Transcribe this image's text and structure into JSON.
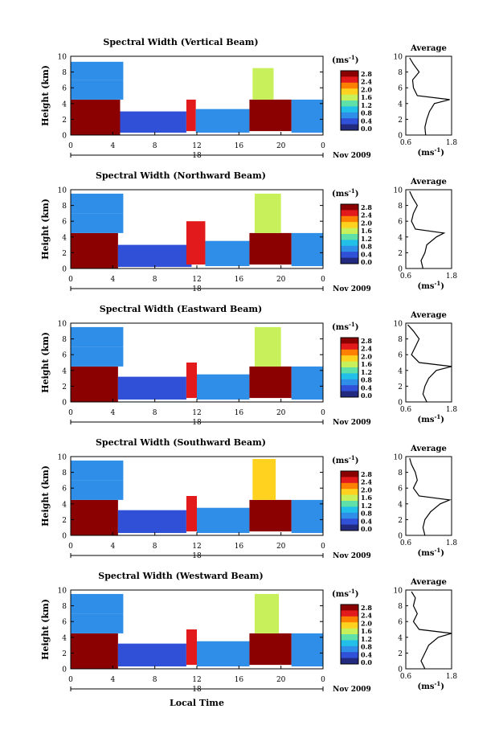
{
  "figure": {
    "date_label": "Nov 2009",
    "x_axis_title": "Local Time"
  },
  "colorbar": {
    "unit_label": "(ms",
    "unit_exp": "-1",
    "unit_close": ")",
    "ticks": [
      "2.8",
      "2.4",
      "2.0",
      "1.6",
      "1.2",
      "0.8",
      "0.4",
      "0.0"
    ],
    "colors": [
      "#8b0000",
      "#e31a1c",
      "#ff7f00",
      "#ffd21f",
      "#c7f05a",
      "#5fe0a8",
      "#22c0e8",
      "#2f8fe8",
      "#3050d8",
      "#222a80"
    ],
    "min": 0.0,
    "max": 3.0
  },
  "average_panel": {
    "title": "Average",
    "x_unit": "(ms",
    "x_unit_exp": "-1",
    "x_unit_close": ")"
  },
  "chart_data": [
    {
      "type": "heatmap",
      "title": "Spectral Width (Vertical Beam)",
      "ylabel": "Height (km)",
      "yticks": [
        "0",
        "2",
        "4",
        "6",
        "8",
        "10"
      ],
      "xticks": [
        "0",
        "4",
        "8",
        "12",
        "16",
        "20",
        "0"
      ],
      "day_label": "18",
      "ylim": [
        0,
        10
      ],
      "xlim": [
        0,
        24
      ],
      "zunit": "ms-1",
      "zlim": [
        0.0,
        3.0
      ],
      "blocks": [
        {
          "t0": 0.0,
          "t1": 4.7,
          "h0": 0.0,
          "h1": 4.5,
          "w": 2.8
        },
        {
          "t0": 0.0,
          "t1": 5.0,
          "h0": 4.5,
          "h1": 7.0,
          "w": 0.8
        },
        {
          "t0": 0.0,
          "t1": 5.0,
          "h0": 7.0,
          "h1": 9.3,
          "w": 0.7
        },
        {
          "t0": 4.7,
          "t1": 11.0,
          "h0": 0.3,
          "h1": 3.0,
          "w": 0.5
        },
        {
          "t0": 11.0,
          "t1": 11.9,
          "h0": 0.5,
          "h1": 4.5,
          "w": 2.6
        },
        {
          "t0": 11.9,
          "t1": 17.0,
          "h0": 0.3,
          "h1": 3.3,
          "w": 0.7
        },
        {
          "t0": 17.0,
          "t1": 21.0,
          "h0": 0.5,
          "h1": 4.5,
          "w": 2.8
        },
        {
          "t0": 17.3,
          "t1": 19.3,
          "h0": 4.5,
          "h1": 8.5,
          "w": 1.5
        },
        {
          "t0": 21.0,
          "t1": 24.0,
          "h0": 0.3,
          "h1": 4.5,
          "w": 0.7
        }
      ],
      "average_profile": {
        "height": [
          0,
          1,
          2,
          3,
          4,
          4.5,
          5,
          6,
          7,
          8,
          9,
          9.8
        ],
        "value": [
          1.12,
          1.1,
          1.15,
          1.22,
          1.35,
          1.75,
          0.9,
          0.8,
          0.78,
          0.95,
          0.8,
          0.7
        ],
        "xlim": [
          0.6,
          1.8
        ],
        "ylim": [
          0,
          10
        ],
        "xticks": [
          "0.6",
          "1.8"
        ],
        "yticks": [
          "0",
          "2",
          "4",
          "6",
          "8",
          "10"
        ]
      }
    },
    {
      "type": "heatmap",
      "title": "Spectral Width (Northward Beam)",
      "ylabel": "Height (km)",
      "yticks": [
        "0",
        "2",
        "4",
        "6",
        "8",
        "10"
      ],
      "xticks": [
        "0",
        "4",
        "8",
        "12",
        "16",
        "20",
        "0"
      ],
      "day_label": "18",
      "ylim": [
        0,
        10
      ],
      "xlim": [
        0,
        24
      ],
      "zunit": "ms-1",
      "zlim": [
        0.0,
        3.0
      ],
      "blocks": [
        {
          "t0": 0.0,
          "t1": 4.5,
          "h0": 0.0,
          "h1": 4.5,
          "w": 2.8
        },
        {
          "t0": 0.0,
          "t1": 5.0,
          "h0": 4.5,
          "h1": 7.0,
          "w": 0.8
        },
        {
          "t0": 0.0,
          "t1": 5.0,
          "h0": 7.0,
          "h1": 9.5,
          "w": 0.7
        },
        {
          "t0": 4.5,
          "t1": 11.5,
          "h0": 0.2,
          "h1": 3.0,
          "w": 0.5
        },
        {
          "t0": 11.0,
          "t1": 12.8,
          "h0": 0.5,
          "h1": 6.0,
          "w": 2.6
        },
        {
          "t0": 12.8,
          "t1": 17.0,
          "h0": 0.3,
          "h1": 3.5,
          "w": 0.7
        },
        {
          "t0": 17.0,
          "t1": 21.0,
          "h0": 0.5,
          "h1": 4.5,
          "w": 2.8
        },
        {
          "t0": 17.5,
          "t1": 20.0,
          "h0": 4.5,
          "h1": 9.5,
          "w": 1.6
        },
        {
          "t0": 21.0,
          "t1": 24.0,
          "h0": 0.3,
          "h1": 4.5,
          "w": 0.7
        }
      ],
      "average_profile": {
        "height": [
          0,
          1,
          2,
          3,
          4,
          4.5,
          5,
          6,
          7,
          8,
          9,
          9.8
        ],
        "value": [
          1.05,
          1.0,
          1.1,
          1.15,
          1.4,
          1.6,
          0.85,
          0.75,
          0.8,
          0.9,
          0.78,
          0.7
        ],
        "xlim": [
          0.6,
          1.8
        ],
        "ylim": [
          0,
          10
        ],
        "xticks": [
          "0.6",
          "1.8"
        ],
        "yticks": [
          "0",
          "2",
          "4",
          "6",
          "8",
          "10"
        ]
      }
    },
    {
      "type": "heatmap",
      "title": "Spectral Width (Eastward Beam)",
      "ylabel": "Height (km)",
      "yticks": [
        "0",
        "2",
        "4",
        "6",
        "8",
        "10"
      ],
      "xticks": [
        "0",
        "4",
        "8",
        "12",
        "16",
        "20",
        "0"
      ],
      "day_label": "18",
      "ylim": [
        0,
        10
      ],
      "xlim": [
        0,
        24
      ],
      "zunit": "ms-1",
      "zlim": [
        0.0,
        3.0
      ],
      "blocks": [
        {
          "t0": 0.0,
          "t1": 4.5,
          "h0": 0.0,
          "h1": 4.5,
          "w": 2.8
        },
        {
          "t0": 0.0,
          "t1": 5.0,
          "h0": 4.5,
          "h1": 7.0,
          "w": 0.8
        },
        {
          "t0": 0.0,
          "t1": 5.0,
          "h0": 7.0,
          "h1": 9.5,
          "w": 0.7
        },
        {
          "t0": 4.5,
          "t1": 11.0,
          "h0": 0.3,
          "h1": 3.2,
          "w": 0.5
        },
        {
          "t0": 11.0,
          "t1": 12.0,
          "h0": 0.5,
          "h1": 5.0,
          "w": 2.6
        },
        {
          "t0": 12.0,
          "t1": 17.0,
          "h0": 0.3,
          "h1": 3.5,
          "w": 0.7
        },
        {
          "t0": 17.0,
          "t1": 21.0,
          "h0": 0.5,
          "h1": 4.5,
          "w": 2.8
        },
        {
          "t0": 17.5,
          "t1": 20.0,
          "h0": 4.5,
          "h1": 9.5,
          "w": 1.5
        },
        {
          "t0": 21.0,
          "t1": 24.0,
          "h0": 0.3,
          "h1": 4.5,
          "w": 0.7
        }
      ],
      "average_profile": {
        "height": [
          0,
          1,
          2,
          3,
          4,
          4.5,
          5,
          6,
          7,
          8,
          9,
          9.8
        ],
        "value": [
          1.15,
          1.05,
          1.1,
          1.2,
          1.4,
          1.8,
          0.95,
          0.75,
          0.85,
          0.95,
          0.8,
          0.65
        ],
        "xlim": [
          0.6,
          1.8
        ],
        "ylim": [
          0,
          10
        ],
        "xticks": [
          "0.6",
          "1.8"
        ],
        "yticks": [
          "0",
          "2",
          "4",
          "6",
          "8",
          "10"
        ]
      }
    },
    {
      "type": "heatmap",
      "title": "Spectral Width (Southward Beam)",
      "ylabel": "Height (km)",
      "yticks": [
        "0",
        "2",
        "4",
        "6",
        "8",
        "10"
      ],
      "xticks": [
        "0",
        "4",
        "8",
        "12",
        "16",
        "20",
        "0"
      ],
      "day_label": "18",
      "ylim": [
        0,
        10
      ],
      "xlim": [
        0,
        24
      ],
      "zunit": "ms-1",
      "zlim": [
        0.0,
        3.0
      ],
      "blocks": [
        {
          "t0": 0.0,
          "t1": 4.5,
          "h0": 0.0,
          "h1": 4.5,
          "w": 2.8
        },
        {
          "t0": 0.0,
          "t1": 5.0,
          "h0": 4.5,
          "h1": 7.0,
          "w": 0.8
        },
        {
          "t0": 0.0,
          "t1": 5.0,
          "h0": 7.0,
          "h1": 9.5,
          "w": 0.7
        },
        {
          "t0": 4.5,
          "t1": 11.0,
          "h0": 0.3,
          "h1": 3.2,
          "w": 0.5
        },
        {
          "t0": 11.0,
          "t1": 12.0,
          "h0": 0.5,
          "h1": 5.0,
          "w": 2.6
        },
        {
          "t0": 12.0,
          "t1": 17.0,
          "h0": 0.3,
          "h1": 3.5,
          "w": 0.7
        },
        {
          "t0": 17.0,
          "t1": 21.0,
          "h0": 0.5,
          "h1": 4.5,
          "w": 2.8
        },
        {
          "t0": 17.3,
          "t1": 19.5,
          "h0": 4.5,
          "h1": 9.7,
          "w": 2.0
        },
        {
          "t0": 21.0,
          "t1": 24.0,
          "h0": 0.3,
          "h1": 4.5,
          "w": 0.7
        }
      ],
      "average_profile": {
        "height": [
          0,
          1,
          2,
          3,
          4,
          4.5,
          5,
          6,
          7,
          8,
          9,
          9.8
        ],
        "value": [
          1.1,
          1.05,
          1.1,
          1.25,
          1.5,
          1.75,
          0.95,
          0.8,
          0.9,
          0.85,
          0.75,
          0.7
        ],
        "xlim": [
          0.6,
          1.8
        ],
        "ylim": [
          0,
          10
        ],
        "xticks": [
          "0.6",
          "1.8"
        ],
        "yticks": [
          "0",
          "2",
          "4",
          "6",
          "8",
          "10"
        ]
      }
    },
    {
      "type": "heatmap",
      "title": "Spectral Width (Westward Beam)",
      "ylabel": "Height (km)",
      "yticks": [
        "0",
        "2",
        "4",
        "6",
        "8",
        "10"
      ],
      "xticks": [
        "0",
        "4",
        "8",
        "12",
        "16",
        "20",
        "0"
      ],
      "day_label": "18",
      "ylim": [
        0,
        10
      ],
      "xlim": [
        0,
        24
      ],
      "zunit": "ms-1",
      "zlim": [
        0.0,
        3.0
      ],
      "blocks": [
        {
          "t0": 0.0,
          "t1": 4.5,
          "h0": 0.0,
          "h1": 4.5,
          "w": 2.8
        },
        {
          "t0": 0.0,
          "t1": 5.0,
          "h0": 4.5,
          "h1": 7.0,
          "w": 0.8
        },
        {
          "t0": 0.0,
          "t1": 5.0,
          "h0": 7.0,
          "h1": 9.5,
          "w": 0.7
        },
        {
          "t0": 4.5,
          "t1": 11.0,
          "h0": 0.3,
          "h1": 3.2,
          "w": 0.5
        },
        {
          "t0": 11.0,
          "t1": 12.0,
          "h0": 0.5,
          "h1": 5.0,
          "w": 2.6
        },
        {
          "t0": 12.0,
          "t1": 17.0,
          "h0": 0.3,
          "h1": 3.5,
          "w": 0.7
        },
        {
          "t0": 17.0,
          "t1": 21.0,
          "h0": 0.5,
          "h1": 4.5,
          "w": 2.8
        },
        {
          "t0": 17.5,
          "t1": 19.8,
          "h0": 4.5,
          "h1": 9.5,
          "w": 1.6
        },
        {
          "t0": 21.0,
          "t1": 24.0,
          "h0": 0.3,
          "h1": 4.5,
          "w": 0.7
        }
      ],
      "average_profile": {
        "height": [
          0,
          1,
          2,
          3,
          4,
          4.5,
          5,
          6,
          7,
          8,
          9,
          9.8
        ],
        "value": [
          1.1,
          1.0,
          1.1,
          1.2,
          1.45,
          1.8,
          0.95,
          0.8,
          0.9,
          0.8,
          0.85,
          0.75
        ],
        "xlim": [
          0.6,
          1.8
        ],
        "ylim": [
          0,
          10
        ],
        "xticks": [
          "0.6",
          "1.8"
        ],
        "yticks": [
          "0",
          "2",
          "4",
          "6",
          "8",
          "10"
        ]
      }
    }
  ]
}
